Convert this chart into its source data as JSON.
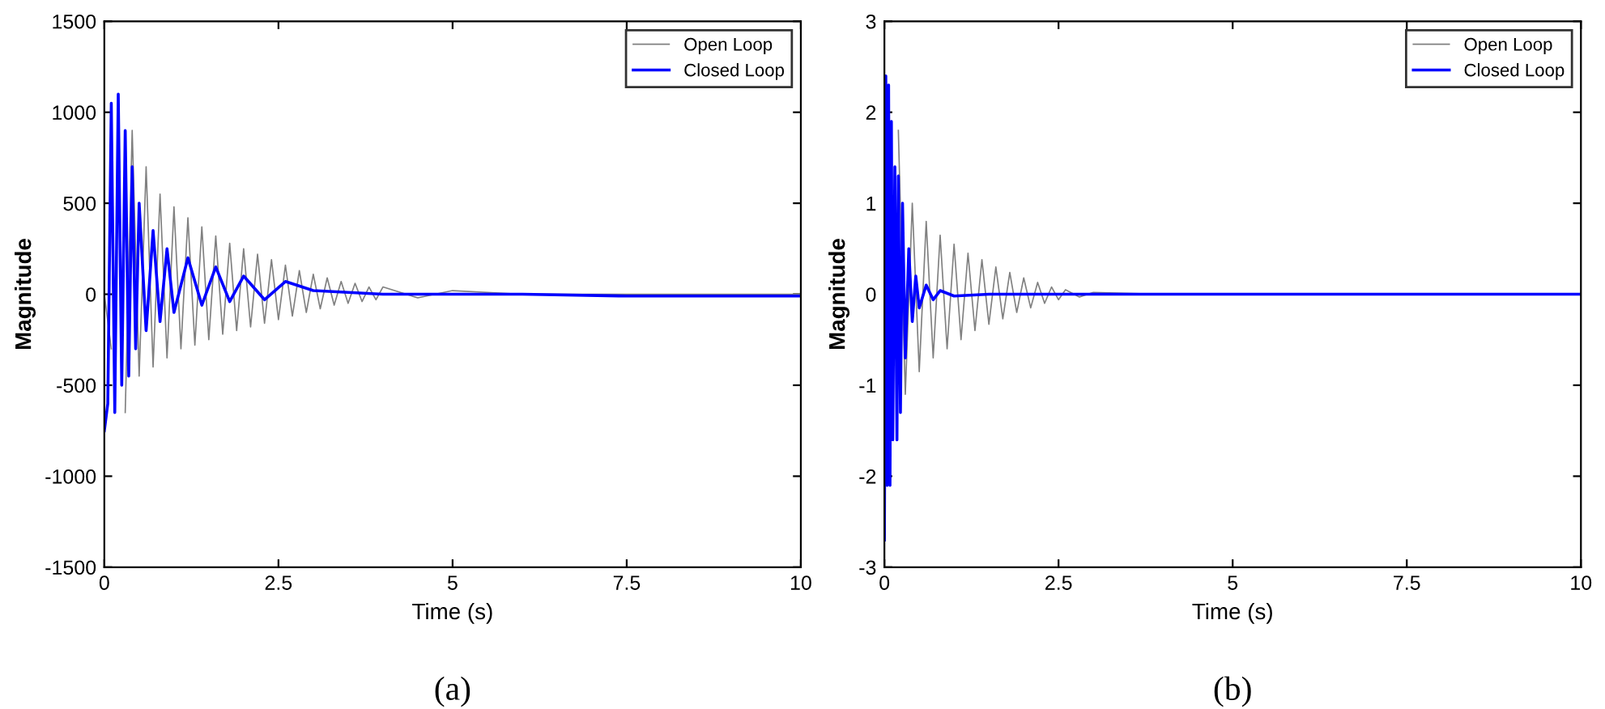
{
  "chart_data": [
    {
      "type": "line",
      "xlabel": "Time (s)",
      "ylabel": "Magnitude",
      "annotations": [
        "(a)"
      ],
      "xlim": [
        0,
        10
      ],
      "ylim": [
        -1500,
        1500
      ],
      "xticks": [
        0,
        2.5,
        5,
        7.5,
        10
      ],
      "yticks": [
        -1500,
        -1000,
        -500,
        0,
        500,
        1000,
        1500
      ],
      "grid": false,
      "legend": "top right",
      "marker": "none",
      "series": [
        {
          "name": "Open Loop",
          "color": "#808080",
          "x": [
            0,
            0.1,
            0.2,
            0.3,
            0.4,
            0.5,
            0.6,
            0.7,
            0.8,
            0.9,
            1.0,
            1.1,
            1.2,
            1.3,
            1.4,
            1.5,
            1.6,
            1.7,
            1.8,
            1.9,
            2.0,
            2.1,
            2.2,
            2.3,
            2.4,
            2.5,
            2.6,
            2.7,
            2.8,
            2.9,
            3.0,
            3.1,
            3.2,
            3.3,
            3.4,
            3.5,
            3.6,
            3.7,
            3.8,
            3.9,
            4.0,
            4.5,
            5,
            6,
            7.5,
            10
          ],
          "values": [
            0,
            -300,
            null,
            -650,
            900,
            -450,
            700,
            -400,
            550,
            -350,
            480,
            -300,
            420,
            -280,
            370,
            -250,
            320,
            -220,
            280,
            -200,
            250,
            -180,
            220,
            -160,
            190,
            -140,
            160,
            -120,
            130,
            -100,
            110,
            -80,
            90,
            -60,
            70,
            -50,
            60,
            -40,
            40,
            -30,
            40,
            -20,
            20,
            0,
            0,
            0
          ]
        },
        {
          "name": "Closed Loop",
          "color": "#0000ff",
          "x": [
            0,
            0.05,
            0.1,
            0.15,
            0.2,
            0.25,
            0.3,
            0.35,
            0.4,
            0.45,
            0.5,
            0.6,
            0.7,
            0.8,
            0.9,
            1.0,
            1.2,
            1.4,
            1.6,
            1.8,
            2.0,
            2.3,
            2.6,
            3.0,
            3.5,
            4,
            5,
            6,
            7.5,
            10
          ],
          "values": [
            -750,
            -600,
            1050,
            -650,
            1100,
            -500,
            900,
            -450,
            700,
            -300,
            500,
            -200,
            350,
            -150,
            250,
            -100,
            200,
            -60,
            150,
            -40,
            100,
            -30,
            70,
            20,
            10,
            0,
            0,
            0,
            -10,
            -10
          ]
        }
      ]
    },
    {
      "type": "line",
      "xlabel": "Time (s)",
      "ylabel": "Magnitude",
      "annotations": [
        "(b)"
      ],
      "xlim": [
        0,
        10
      ],
      "ylim": [
        -3,
        3
      ],
      "xticks": [
        0,
        2.5,
        5,
        7.5,
        10
      ],
      "yticks": [
        -3,
        -2,
        -1,
        0,
        1,
        2,
        3
      ],
      "grid": false,
      "legend": "top right",
      "marker": "none",
      "series": [
        {
          "name": "Open Loop",
          "color": "#808080",
          "x": [
            0.2,
            0.3,
            0.4,
            0.5,
            0.6,
            0.7,
            0.8,
            0.9,
            1.0,
            1.1,
            1.2,
            1.3,
            1.4,
            1.5,
            1.6,
            1.7,
            1.8,
            1.9,
            2.0,
            2.1,
            2.2,
            2.3,
            2.4,
            2.5,
            2.6,
            2.8,
            3.0,
            4,
            5,
            10
          ],
          "values": [
            1.8,
            -1.1,
            1.0,
            -0.85,
            0.8,
            -0.7,
            0.65,
            -0.6,
            0.55,
            -0.5,
            0.45,
            -0.4,
            0.38,
            -0.33,
            0.3,
            -0.27,
            0.24,
            -0.2,
            0.18,
            -0.15,
            0.13,
            -0.1,
            0.08,
            -0.06,
            0.05,
            -0.03,
            0.02,
            0,
            0,
            0
          ]
        },
        {
          "name": "Closed Loop",
          "color": "#0000ff",
          "x": [
            0,
            0.02,
            0.04,
            0.06,
            0.08,
            0.1,
            0.12,
            0.15,
            0.18,
            0.2,
            0.23,
            0.26,
            0.3,
            0.35,
            0.4,
            0.45,
            0.5,
            0.6,
            0.7,
            0.8,
            1.0,
            1.5,
            5,
            10
          ],
          "values": [
            -2.7,
            2.4,
            -2.1,
            2.3,
            -2.1,
            1.9,
            -1.6,
            1.4,
            -1.6,
            1.3,
            -1.3,
            1.0,
            -0.7,
            0.5,
            -0.3,
            0.2,
            -0.15,
            0.1,
            -0.06,
            0.04,
            -0.02,
            0,
            0,
            0
          ]
        }
      ]
    }
  ]
}
